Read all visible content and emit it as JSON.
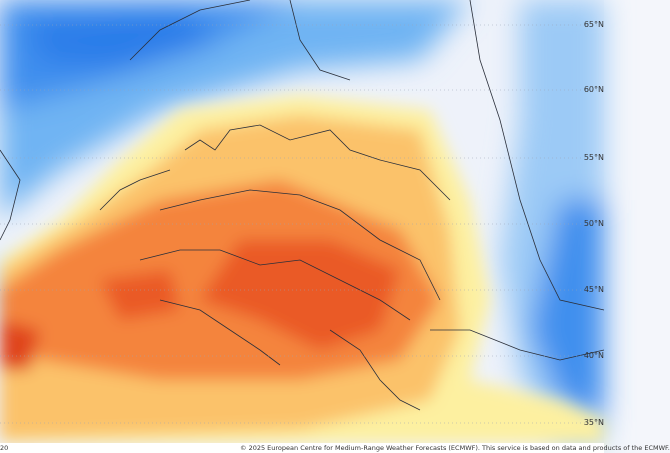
{
  "map": {
    "latitude_labels": [
      "65°N",
      "60°N",
      "55°N",
      "50°N",
      "45°N",
      "40°N",
      "35°N"
    ],
    "colors": {
      "cold_deep": "#2b7de9",
      "cold": "#6fb4f3",
      "cool": "#b7dcf9",
      "neutral": "#eef2fa",
      "warm_light": "#fdf0a0",
      "warm": "#fbc26a",
      "hot": "#f4843c",
      "hotter": "#ea5a28"
    }
  },
  "footer": {
    "left_text": "20",
    "copyright": "© 2025 European Centre for Medium-Range Weather Forecasts (ECMWF). This service is based on data and products of the ECMWF."
  }
}
